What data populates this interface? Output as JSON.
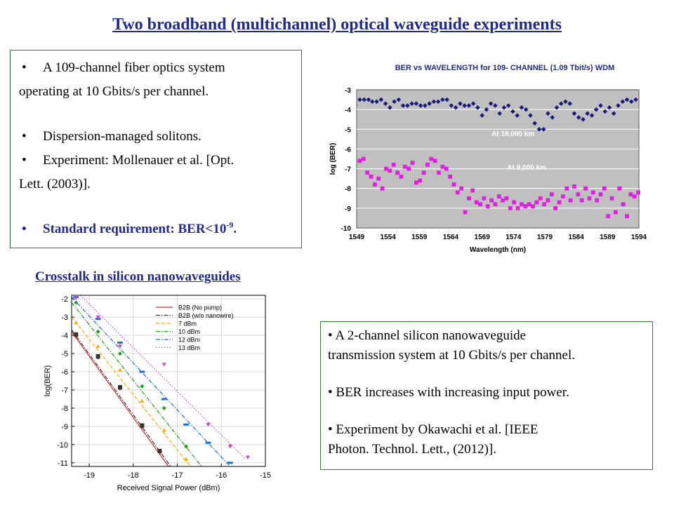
{
  "title": "Two broadband (multichannel) optical waveguide experiments",
  "left_box": {
    "b1_line1": "A 109-channel fiber optics system",
    "b1_line2": "operating at 10 Gbits/s per channel.",
    "b2": "Dispersion-managed solitons.",
    "b3_line1": "Experiment: Mollenauer et al. [Opt.",
    "b3_line2": "Lett. (2003)].",
    "b4_prefix": "Standard requirement: BER<10",
    "b4_exp": "-9",
    "b4_suffix": "."
  },
  "subtitle": "Crosstalk in silicon nanowaveguides",
  "right_box": {
    "b1_line1": "A 2-channel silicon nanowaveguide",
    "b1_line2": "transmission system at 10 Gbits/s per channel.",
    "b2": "BER increases with increasing input power.",
    "b3_line1": "Experiment by Okawachi et al. [IEEE",
    "b3_line2": "Photon. Technol. Lett., (2012)]."
  },
  "chart_data": [
    {
      "type": "scatter",
      "title": "BER vs WAVELENGTH for 109- CHANNEL (1.09 Tbit/s) WDM",
      "xlabel": "Wavelength (nm)",
      "ylabel": "log (BER)",
      "xlim": [
        1549,
        1594
      ],
      "ylim": [
        -10,
        -3
      ],
      "xticks": [
        "1549",
        "1554",
        "1559",
        "1564",
        "1569",
        "1574",
        "1579",
        "1584",
        "1589",
        "1594"
      ],
      "yticks": [
        "-3",
        "-4",
        "-5",
        "-6",
        "-7",
        "-8",
        "-9",
        "-10"
      ],
      "grid": true,
      "annotations": [
        "At 18,000 km",
        "At 9,000 km"
      ],
      "series": [
        {
          "color": "#1a1a7a",
          "marker": "diamond",
          "points": [
            [
              1549.5,
              -3.5
            ],
            [
              1550.2,
              -3.5
            ],
            [
              1550.9,
              -3.5
            ],
            [
              1551.5,
              -3.6
            ],
            [
              1552.2,
              -3.6
            ],
            [
              1552.9,
              -3.5
            ],
            [
              1553.6,
              -3.7
            ],
            [
              1554.3,
              -3.9
            ],
            [
              1555,
              -3.6
            ],
            [
              1555.7,
              -3.5
            ],
            [
              1556.4,
              -3.8
            ],
            [
              1557.1,
              -3.8
            ],
            [
              1557.8,
              -3.7
            ],
            [
              1558.5,
              -3.7
            ],
            [
              1559.2,
              -3.8
            ],
            [
              1559.9,
              -3.8
            ],
            [
              1560.6,
              -3.7
            ],
            [
              1561.3,
              -3.6
            ],
            [
              1562,
              -3.6
            ],
            [
              1562.7,
              -3.5
            ],
            [
              1563.4,
              -3.5
            ],
            [
              1564.1,
              -3.8
            ],
            [
              1564.8,
              -3.9
            ],
            [
              1565.5,
              -3.7
            ],
            [
              1566.2,
              -3.8
            ],
            [
              1566.9,
              -3.8
            ],
            [
              1567.6,
              -3.7
            ],
            [
              1568.3,
              -3.9
            ],
            [
              1569,
              -4.3
            ],
            [
              1569.7,
              -4.0
            ],
            [
              1570.4,
              -3.7
            ],
            [
              1571.1,
              -3.8
            ],
            [
              1571.8,
              -4.2
            ],
            [
              1572.5,
              -3.9
            ],
            [
              1573.2,
              -3.8
            ],
            [
              1573.9,
              -4.1
            ],
            [
              1574.6,
              -4.3
            ],
            [
              1575.3,
              -3.9
            ],
            [
              1576,
              -4.0
            ],
            [
              1576.7,
              -4.3
            ],
            [
              1577.4,
              -4.7
            ],
            [
              1578.1,
              -5.0
            ],
            [
              1578.8,
              -5.0
            ],
            [
              1579.5,
              -4.2
            ],
            [
              1580.2,
              -4.4
            ],
            [
              1580.9,
              -3.9
            ],
            [
              1581.6,
              -3.7
            ],
            [
              1582.3,
              -3.6
            ],
            [
              1583,
              -3.7
            ],
            [
              1583.7,
              -4.2
            ],
            [
              1584.4,
              -4.4
            ],
            [
              1585.1,
              -4.5
            ],
            [
              1585.8,
              -4.2
            ],
            [
              1586.5,
              -4.3
            ],
            [
              1587.2,
              -4.0
            ],
            [
              1587.9,
              -3.8
            ],
            [
              1588.6,
              -4.1
            ],
            [
              1589.3,
              -3.9
            ],
            [
              1590,
              -4.2
            ],
            [
              1590.7,
              -3.8
            ],
            [
              1591.4,
              -3.6
            ],
            [
              1592.1,
              -3.5
            ],
            [
              1592.8,
              -3.6
            ],
            [
              1593.5,
              -3.5
            ]
          ]
        },
        {
          "color": "#e020e0",
          "marker": "square",
          "points": [
            [
              1549.5,
              -6.6
            ],
            [
              1550.1,
              -6.5
            ],
            [
              1550.7,
              -7.2
            ],
            [
              1551.3,
              -7.4
            ],
            [
              1551.9,
              -7.8
            ],
            [
              1552.5,
              -7.5
            ],
            [
              1553.1,
              -8.0
            ],
            [
              1553.7,
              -7.0
            ],
            [
              1554.3,
              -7.1
            ],
            [
              1554.9,
              -6.8
            ],
            [
              1555.5,
              -7.2
            ],
            [
              1556.1,
              -7.4
            ],
            [
              1556.7,
              -6.9
            ],
            [
              1557.3,
              -7.0
            ],
            [
              1557.9,
              -6.7
            ],
            [
              1558.5,
              -7.7
            ],
            [
              1559.1,
              -7.6
            ],
            [
              1559.7,
              -7.2
            ],
            [
              1560.3,
              -6.8
            ],
            [
              1560.9,
              -6.5
            ],
            [
              1561.5,
              -6.6
            ],
            [
              1562.1,
              -7.2
            ],
            [
              1562.7,
              -6.9
            ],
            [
              1563.3,
              -7.0
            ],
            [
              1563.9,
              -7.4
            ],
            [
              1564.5,
              -7.8
            ],
            [
              1565.1,
              -8.2
            ],
            [
              1565.7,
              -8.0
            ],
            [
              1566.3,
              -9.2
            ],
            [
              1566.9,
              -8.5
            ],
            [
              1567.5,
              -8.1
            ],
            [
              1568.1,
              -8.7
            ],
            [
              1568.7,
              -8.8
            ],
            [
              1569.3,
              -8.5
            ],
            [
              1569.9,
              -8.9
            ],
            [
              1570.5,
              -8.6
            ],
            [
              1571.1,
              -8.8
            ],
            [
              1571.7,
              -8.4
            ],
            [
              1572.3,
              -8.6
            ],
            [
              1572.9,
              -8.5
            ],
            [
              1573.5,
              -9.0
            ],
            [
              1574.1,
              -8.7
            ],
            [
              1574.7,
              -9.0
            ],
            [
              1575.3,
              -8.8
            ],
            [
              1575.9,
              -8.9
            ],
            [
              1576.5,
              -8.8
            ],
            [
              1577.1,
              -8.9
            ],
            [
              1577.7,
              -8.7
            ],
            [
              1578.3,
              -8.5
            ],
            [
              1578.9,
              -8.8
            ],
            [
              1579.5,
              -8.6
            ],
            [
              1580.1,
              -8.3
            ],
            [
              1580.7,
              -9.0
            ],
            [
              1581.3,
              -8.7
            ],
            [
              1581.9,
              -8.4
            ],
            [
              1582.5,
              -8.0
            ],
            [
              1583.1,
              -8.6
            ],
            [
              1583.7,
              -7.9
            ],
            [
              1584.3,
              -8.3
            ],
            [
              1584.9,
              -8.6
            ],
            [
              1585.5,
              -8.0
            ],
            [
              1586.1,
              -8.5
            ],
            [
              1586.7,
              -8.2
            ],
            [
              1587.3,
              -8.6
            ],
            [
              1587.9,
              -8.3
            ],
            [
              1588.5,
              -8.0
            ],
            [
              1589.1,
              -9.4
            ],
            [
              1589.7,
              -8.5
            ],
            [
              1590.3,
              -9.2
            ],
            [
              1590.9,
              -8.0
            ],
            [
              1591.5,
              -8.8
            ],
            [
              1592.1,
              -9.4
            ],
            [
              1592.7,
              -8.3
            ],
            [
              1593.3,
              -8.4
            ],
            [
              1593.9,
              -8.2
            ]
          ]
        }
      ]
    },
    {
      "type": "line",
      "xlabel": "Received Signal Power (dBm)",
      "ylabel": "log(BER)",
      "xlim": [
        -19.4,
        -15
      ],
      "ylim": [
        -11.2,
        -1.8
      ],
      "xticks": [
        "-19",
        "-18",
        "-17",
        "-16",
        "-15"
      ],
      "yticks": [
        "-2",
        "-3",
        "-4",
        "-5",
        "-6",
        "-7",
        "-8",
        "-9",
        "-10",
        "-11"
      ],
      "legend_position": "top-right",
      "series": [
        {
          "name": "B2B (No pump)",
          "color": "#d03030",
          "dash": "solid",
          "marker": "circle",
          "line": [
            [
              -19.4,
              -3.8
            ],
            [
              -17.2,
              -11.2
            ]
          ],
          "points": [
            [
              -19.3,
              -4.0
            ],
            [
              -18.8,
              -5.2
            ],
            [
              -18.3,
              -6.9
            ],
            [
              -17.8,
              -9.0
            ],
            [
              -17.4,
              -10.4
            ]
          ]
        },
        {
          "name": "B2B (w/o nanowire)",
          "color": "#333333",
          "dash": "dashdot",
          "marker": "square",
          "line": [
            [
              -19.4,
              -3.7
            ],
            [
              -17.15,
              -11.2
            ]
          ],
          "points": [
            [
              -19.3,
              -3.95
            ],
            [
              -18.8,
              -5.15
            ],
            [
              -18.3,
              -6.85
            ],
            [
              -17.8,
              -8.95
            ],
            [
              -17.4,
              -10.35
            ]
          ]
        },
        {
          "name": "7 dBm",
          "color": "#ffaa00",
          "dash": "dashed",
          "marker": "triangle-up",
          "line": [
            [
              -19.4,
              -3.0
            ],
            [
              -16.7,
              -11.2
            ]
          ],
          "points": [
            [
              -19.3,
              -3.3
            ],
            [
              -18.8,
              -4.6
            ],
            [
              -18.3,
              -5.9
            ],
            [
              -17.8,
              -7.6
            ],
            [
              -17.3,
              -9.2
            ],
            [
              -16.8,
              -10.8
            ]
          ]
        },
        {
          "name": "10 dBm",
          "color": "#20a020",
          "dash": "dashdot",
          "marker": "diamond",
          "line": [
            [
              -19.4,
              -2.2
            ],
            [
              -16.45,
              -11.2
            ]
          ],
          "points": [
            [
              -19.3,
              -2.2
            ],
            [
              -18.8,
              -3.8
            ],
            [
              -18.3,
              -5.0
            ],
            [
              -17.8,
              -6.8
            ],
            [
              -17.3,
              -8.0
            ],
            [
              -16.8,
              -10.1
            ]
          ]
        },
        {
          "name": "12 dBm",
          "color": "#2070d0",
          "dash": "dashdot",
          "marker": "dash",
          "line": [
            [
              -19.4,
              -1.9
            ],
            [
              -15.8,
              -11.2
            ]
          ],
          "points": [
            [
              -19.3,
              -1.9
            ],
            [
              -18.8,
              -3.1
            ],
            [
              -18.3,
              -4.4
            ],
            [
              -17.8,
              -6.0
            ],
            [
              -17.3,
              -7.5
            ],
            [
              -16.8,
              -8.9
            ],
            [
              -16.3,
              -9.9
            ],
            [
              -15.8,
              -11.0
            ]
          ]
        },
        {
          "name": "13 dBm",
          "color": "#d040d0",
          "dash": "dotted",
          "marker": "triangle-down",
          "line": [
            [
              -19.2,
              -1.8
            ],
            [
              -15.45,
              -10.8
            ]
          ],
          "points": [
            [
              -19.3,
              -1.95
            ],
            [
              -18.8,
              -3.0
            ],
            [
              -18.3,
              -4.6
            ],
            [
              -17.3,
              -5.6
            ],
            [
              -16.3,
              -8.9
            ],
            [
              -15.8,
              -10.1
            ],
            [
              -15.4,
              -10.7
            ]
          ]
        }
      ]
    }
  ]
}
